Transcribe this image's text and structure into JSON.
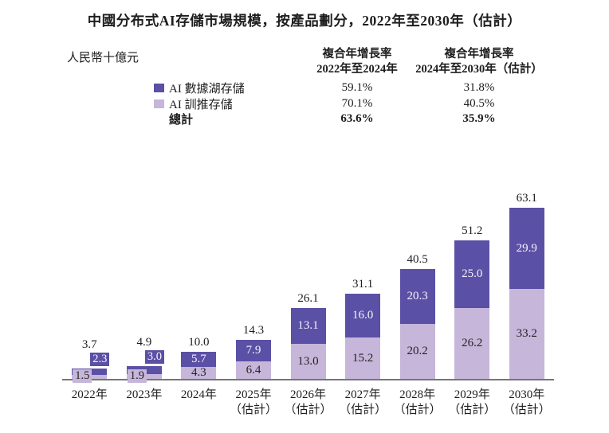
{
  "title": "中國分布式AI存儲市場規模，按產品劃分，2022年至2030年（估計）",
  "unit_label": "人民幣十億元",
  "colors": {
    "dark_purple": "#5a50a5",
    "light_purple": "#c6b6da",
    "axis_gray": "#767676"
  },
  "cagr": {
    "columns": [
      {
        "line1": "複合年增長率",
        "line2": "2022年至2024年"
      },
      {
        "line1": "複合年增長率",
        "line2": "2024年至2030年（估計）"
      }
    ],
    "rows": [
      {
        "label": "AI 數據湖存儲",
        "swatch": "dark_purple",
        "values": [
          "59.1%",
          "31.8%"
        ]
      },
      {
        "label": "AI 訓推存儲",
        "swatch": "light_purple",
        "values": [
          "70.1%",
          "40.5%"
        ]
      },
      {
        "label": "總計",
        "swatch": "",
        "values": [
          "63.6%",
          "35.9%"
        ]
      }
    ]
  },
  "chart_data": {
    "type": "bar",
    "stacked": true,
    "title": "中國分布式AI存儲市場規模，按產品劃分，2022年至2030年（估計）",
    "ylabel": "人民幣十億元",
    "categories": [
      "2022年",
      "2023年",
      "2024年",
      "2025年",
      "2026年",
      "2027年",
      "2028年",
      "2029年",
      "2030年"
    ],
    "category_notes": [
      "",
      "",
      "",
      "（估計）",
      "（估計）",
      "（估計）",
      "（估計）",
      "（估計）",
      "（估計）"
    ],
    "series": [
      {
        "name": "AI 數據湖存儲",
        "color": "#5a50a5",
        "values": [
          2.3,
          3.0,
          5.7,
          7.9,
          13.1,
          16.0,
          20.3,
          25.0,
          29.9
        ]
      },
      {
        "name": "AI 訓推存儲",
        "color": "#c6b6da",
        "values": [
          1.5,
          1.9,
          4.3,
          6.4,
          13.0,
          15.2,
          20.2,
          26.2,
          33.2
        ]
      }
    ],
    "totals": [
      3.7,
      4.9,
      10.0,
      14.3,
      26.1,
      31.1,
      40.5,
      51.2,
      63.1
    ],
    "ylim": [
      0,
      65
    ],
    "grid": false,
    "legend_position": "top-left",
    "value_label_mode": [
      "outside",
      "outside",
      "inside",
      "inside",
      "inside",
      "inside",
      "inside",
      "inside",
      "inside"
    ]
  }
}
